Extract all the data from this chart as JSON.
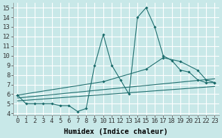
{
  "xlabel": "Humidex (Indice chaleur)",
  "xlim": [
    -0.5,
    23.5
  ],
  "ylim": [
    3.8,
    15.5
  ],
  "yticks": [
    4,
    5,
    6,
    7,
    8,
    9,
    10,
    11,
    12,
    13,
    14,
    15
  ],
  "xticks": [
    0,
    1,
    2,
    3,
    4,
    5,
    6,
    7,
    8,
    9,
    10,
    11,
    12,
    13,
    14,
    15,
    16,
    17,
    18,
    19,
    20,
    21,
    22,
    23
  ],
  "bg_color": "#c8e8e8",
  "grid_color": "#ffffff",
  "line_color": "#1a6b6b",
  "curves": {
    "c1": {
      "x": [
        0,
        1,
        2,
        3,
        4,
        5,
        6,
        7,
        8,
        9,
        10,
        11,
        12,
        13,
        14,
        15,
        16,
        17,
        18,
        19,
        20,
        21,
        22,
        23
      ],
      "y": [
        5.9,
        5.0,
        5.0,
        5.0,
        5.0,
        4.8,
        4.8,
        4.2,
        4.5,
        9.0,
        12.2,
        9.0,
        7.5,
        6.0,
        14.0,
        15.0,
        13.0,
        10.0,
        9.5,
        8.5,
        8.3,
        7.5,
        7.2,
        7.2
      ]
    },
    "c2": {
      "x": [
        0,
        10,
        15,
        17,
        19,
        21,
        22,
        23
      ],
      "y": [
        5.9,
        7.3,
        8.6,
        9.8,
        9.4,
        8.5,
        7.5,
        7.2
      ]
    },
    "c3": {
      "x": [
        0,
        23
      ],
      "y": [
        5.6,
        7.6
      ]
    },
    "c4": {
      "x": [
        0,
        23
      ],
      "y": [
        5.3,
        6.8
      ]
    }
  },
  "font_name": "monospace",
  "tick_fontsize": 6.5,
  "label_fontsize": 7.5
}
